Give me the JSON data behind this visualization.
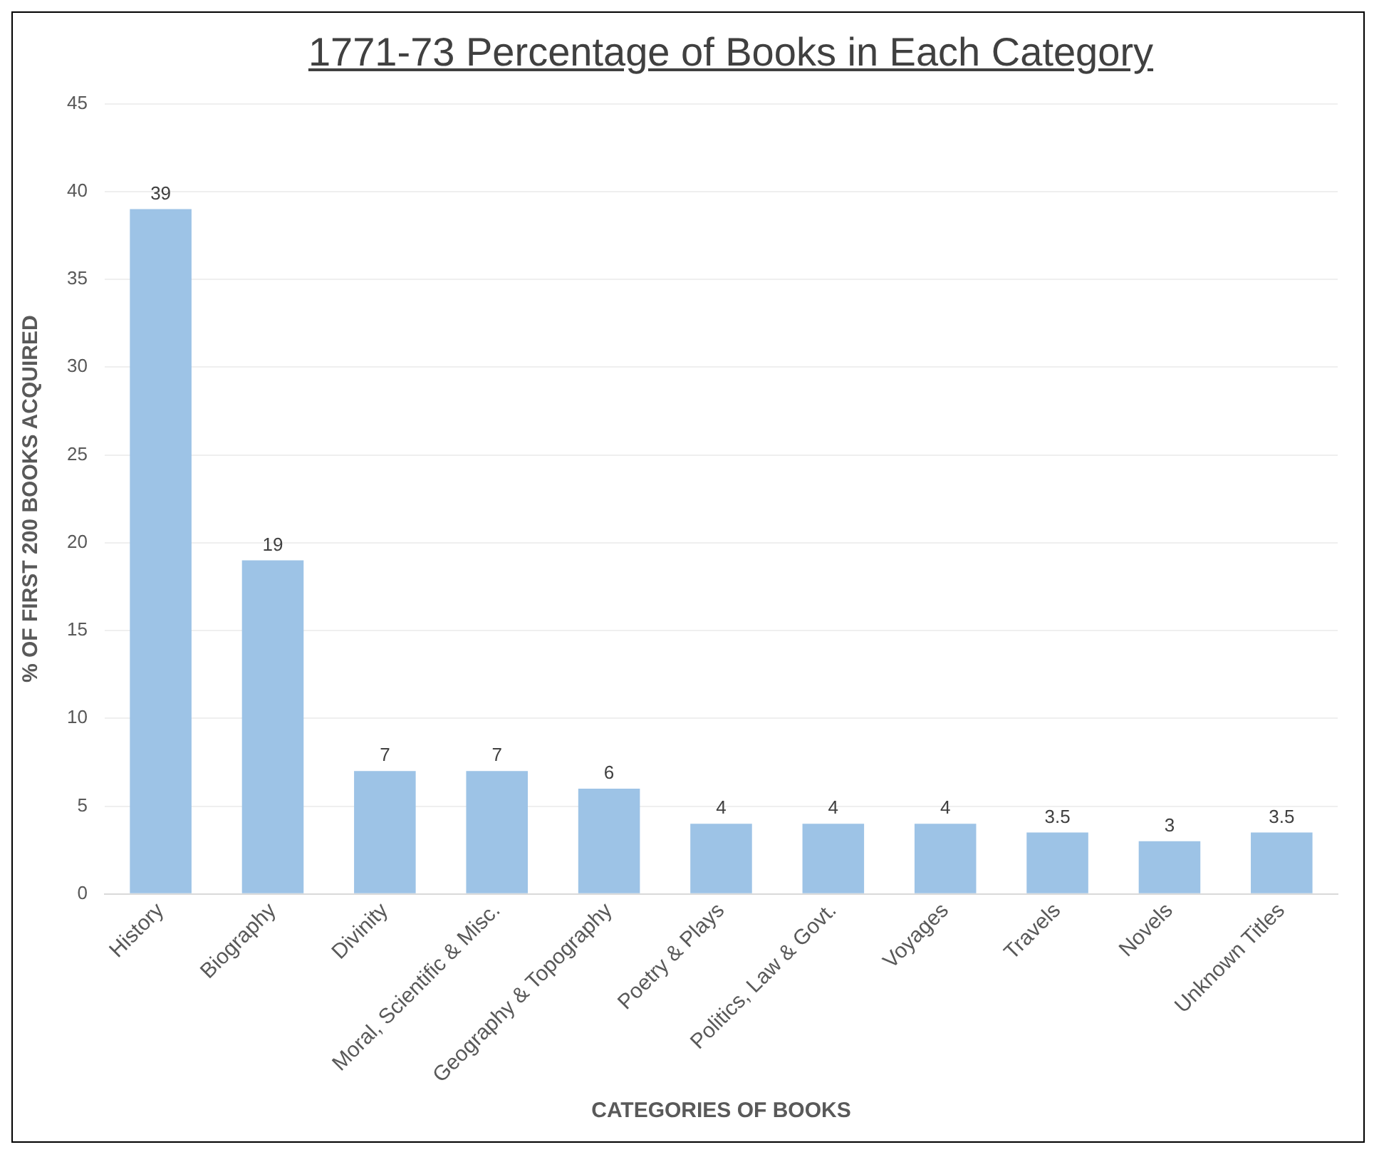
{
  "chart_data": {
    "type": "bar",
    "title": "1771-73 Percentage of Books in Each Category",
    "xlabel": "CATEGORIES OF BOOKS",
    "ylabel": "% OF FIRST 200 BOOKS ACQUIRED",
    "categories": [
      "History",
      "Biography",
      "Divinity",
      "Moral, Scientific & Misc.",
      "Geography & Topography",
      "Poetry & Plays",
      "Politics, Law & Govt.",
      "Voyages",
      "Travels",
      "Novels",
      "Unknown Titles"
    ],
    "values": [
      39,
      19,
      7,
      7,
      6,
      4,
      4,
      4,
      3.5,
      3,
      3.5
    ],
    "color": "#9dc3e6",
    "ylim": [
      0,
      45
    ],
    "yticks": [
      0,
      5,
      10,
      15,
      20,
      25,
      30,
      35,
      40,
      45
    ],
    "grid": "y",
    "data_labels": true
  }
}
